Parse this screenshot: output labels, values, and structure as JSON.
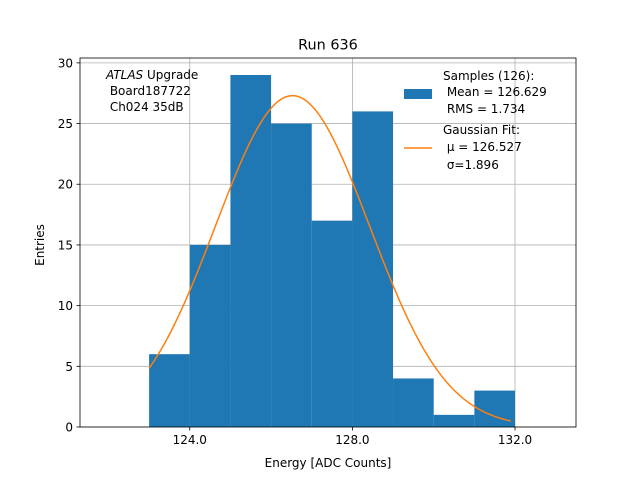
{
  "chart_data": {
    "type": "bar",
    "title": "Run 636",
    "xlabel": "Energy [ADC Counts]",
    "ylabel": "Entries",
    "xlim": [
      121.3,
      133.5
    ],
    "ylim": [
      0,
      30.4
    ],
    "grid": true,
    "x_ticks": [
      124.0,
      128.0,
      132.0
    ],
    "x_tick_labels": [
      "124.0",
      "128.0",
      "132.0"
    ],
    "y_ticks": [
      0,
      5,
      10,
      15,
      20,
      25,
      30
    ],
    "y_tick_labels": [
      "0",
      "5",
      "10",
      "15",
      "20",
      "25",
      "30"
    ],
    "bin_edges": [
      123.0,
      124.0,
      125.0,
      126.0,
      127.0,
      128.0,
      129.0,
      130.0,
      131.0,
      132.0
    ],
    "values": [
      6,
      15,
      29,
      25,
      17,
      26,
      4,
      1,
      3
    ],
    "bar_color": "#1f77b4",
    "fit": {
      "type": "gaussian",
      "mu": 126.527,
      "sigma": 1.896,
      "amplitude": 27.3,
      "x_range": [
        123.0,
        131.9
      ],
      "color": "#ff7f0e"
    },
    "annotation": {
      "italic": "ATLAS",
      "lines": [
        " Upgrade",
        " Board187722",
        " Ch024 35dB"
      ]
    },
    "legend": {
      "position": "top-right",
      "entries": [
        {
          "marker": "patch",
          "lines": [
            "Samples (126):",
            " Mean = 126.629",
            " RMS = 1.734"
          ]
        },
        {
          "marker": "line",
          "lines": [
            "Gaussian Fit:",
            " μ = 126.527",
            " σ=1.896"
          ]
        }
      ]
    }
  }
}
